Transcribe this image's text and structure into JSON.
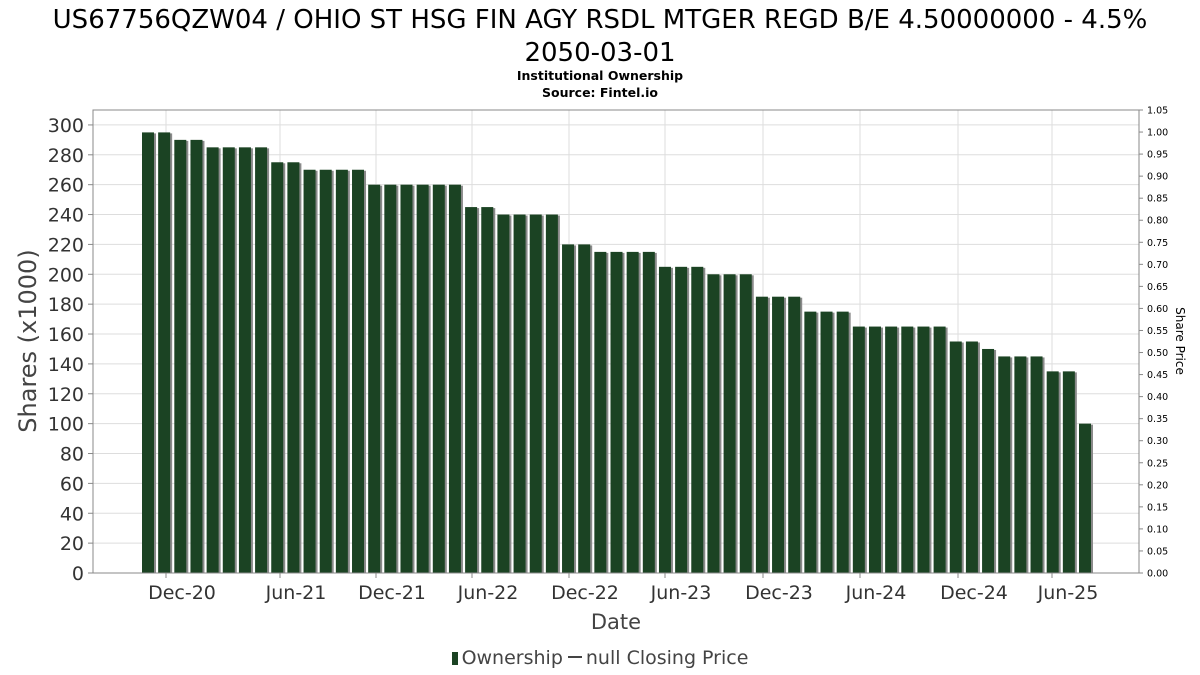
{
  "title": "US67756QZW04 / OHIO ST HSG FIN AGY RSDL MTGER REGD B/E 4.50000000 - 4.5%\n2050-03-01",
  "subtitle_line1": "Institutional Ownership",
  "subtitle_line2": "Source: Fintel.io",
  "legend": {
    "ownership_label": "Ownership",
    "price_label": "null Closing Price"
  },
  "colors": {
    "bar": "#1b4323",
    "bar_shadow": "#8a8a8a",
    "grid": "#dddddd",
    "axis": "#888888"
  },
  "chart_data": {
    "type": "bar",
    "title": "US67756QZW04 / OHIO ST HSG FIN AGY RSDL MTGER REGD B/E 4.50000000 - 4.5% 2050-03-01",
    "xlabel": "Date",
    "ylabel": "Shares (x1000)",
    "y2label": "Share Price",
    "ylim": [
      0,
      310
    ],
    "y2lim": [
      0,
      1.05
    ],
    "yticks": [
      0,
      20,
      40,
      60,
      80,
      100,
      120,
      140,
      160,
      180,
      200,
      220,
      240,
      260,
      280,
      300
    ],
    "y2ticks": [
      "0.00",
      "0.05",
      "0.10",
      "0.15",
      "0.20",
      "0.25",
      "0.30",
      "0.35",
      "0.40",
      "0.45",
      "0.50",
      "0.55",
      "0.60",
      "0.65",
      "0.70",
      "0.75",
      "0.80",
      "0.85",
      "0.90",
      "0.95",
      "1.00",
      "1.05"
    ],
    "xticks": [
      "Dec-20",
      "Jun-21",
      "Dec-21",
      "Jun-22",
      "Dec-22",
      "Jun-23",
      "Dec-23",
      "Jun-24",
      "Dec-24",
      "Jun-25"
    ],
    "grid": true,
    "legend_position": "bottom",
    "series": [
      {
        "name": "Ownership",
        "values": [
          295,
          295,
          290,
          290,
          285,
          285,
          285,
          285,
          275,
          275,
          270,
          270,
          270,
          270,
          260,
          260,
          260,
          260,
          260,
          260,
          245,
          245,
          240,
          240,
          240,
          240,
          220,
          220,
          215,
          215,
          215,
          215,
          205,
          205,
          205,
          200,
          200,
          200,
          185,
          185,
          185,
          175,
          175,
          175,
          165,
          165,
          165,
          165,
          165,
          165,
          155,
          155,
          150,
          145,
          145,
          145,
          135,
          135,
          100
        ]
      },
      {
        "name": "null Closing Price",
        "values": []
      }
    ]
  }
}
